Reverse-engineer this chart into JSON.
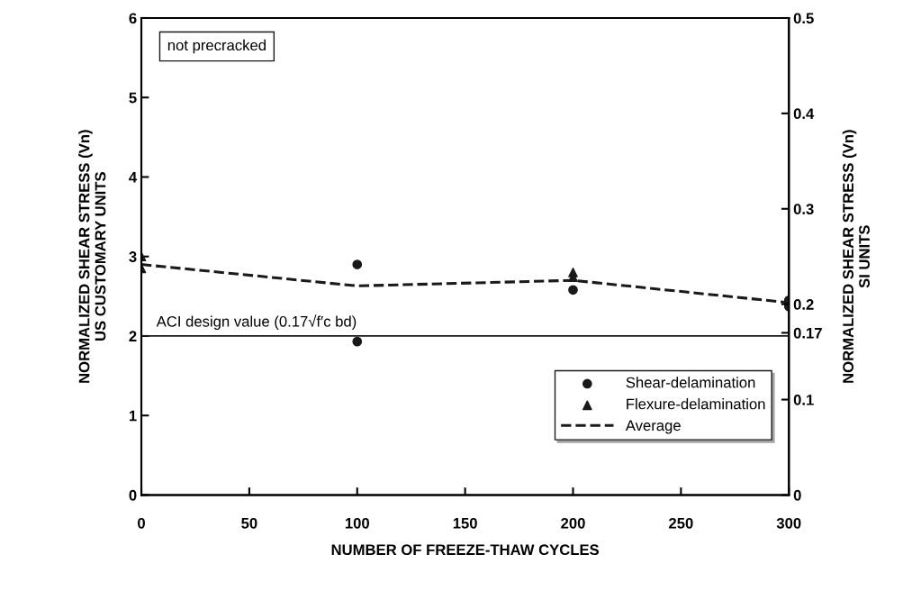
{
  "chart_data": {
    "type": "scatter",
    "xlabel": "NUMBER OF FREEZE-THAW CYCLES",
    "ylabel": "NORMALIZED SHEAR STRESS (Vn)\nUS CUSTOMARY UNITS",
    "y2label": "NORMALIZED SHEAR STRESS (Vn)\nSI UNITS",
    "xlim": [
      0,
      300
    ],
    "xticks": [
      0,
      50,
      100,
      150,
      200,
      250,
      300
    ],
    "ylim": [
      0,
      6
    ],
    "yticks": [
      0,
      1,
      2,
      3,
      4,
      5,
      6
    ],
    "y2lim": [
      0,
      0.5
    ],
    "y2ticks": [
      0,
      0.1,
      0.17,
      0.2,
      0.3,
      0.4,
      0.5
    ],
    "series": [
      {
        "name": "Shear-delamination",
        "marker": "circle",
        "color": "#1a1a1a",
        "x": [
          100,
          100,
          200,
          300,
          300
        ],
        "values": [
          2.9,
          1.93,
          2.58,
          2.45,
          2.37
        ]
      },
      {
        "name": "Flexure-delamination",
        "marker": "triangle",
        "color": "#1a1a1a",
        "x": [
          0,
          0,
          200,
          200
        ],
        "values": [
          3.0,
          2.85,
          2.8,
          2.74
        ]
      },
      {
        "name": "Average",
        "type": "line",
        "marker": "none",
        "line_style": "dashed",
        "color": "#1a1a1a",
        "x": [
          0,
          100,
          200,
          300
        ],
        "values": [
          2.9,
          2.63,
          2.7,
          2.42
        ]
      }
    ],
    "ref_lines": [
      {
        "axis": "y",
        "value": 2,
        "label": "ACI design value (0.17√f′c bd)",
        "color": "#1a1a1a",
        "line_style": "solid"
      }
    ],
    "annotations": [
      "not precracked"
    ],
    "legend": "bottom right",
    "grid": false
  }
}
